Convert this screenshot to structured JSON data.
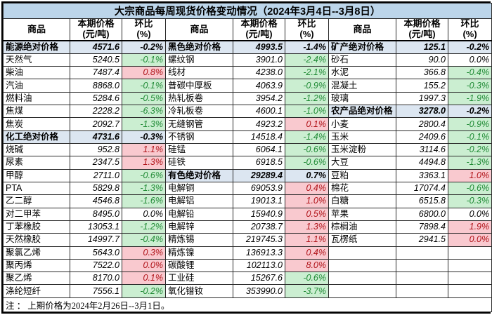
{
  "colors": {
    "title-bg": "#BCD5EA",
    "header-bg": "#FFFFFF",
    "section-bg": "#DCE6F1",
    "positive-bg": "#F9C9CF",
    "positive-text": "#B01218",
    "negative-bg": "#CBEED1",
    "negative-text": "#1F8A34",
    "grid-line": "#2B2B2B",
    "outer-border": "#000000",
    "text": "#000000"
  },
  "chart_data": {
    "type": "table",
    "title": "大宗商品每周现货价格变动情况（2024年3月4日--3月8日）",
    "note": "注 ： 上期价格为2024年2月26日--3月1日。",
    "header": {
      "commodity": "商品",
      "price_line1": "本期价格",
      "price_line2": "(元/吨)",
      "pct_line1": "环比",
      "pct_line2": "(%)"
    },
    "row_count": 20,
    "groups": [
      {
        "rows": [
          {
            "name": "能源绝对价格",
            "price": "4571.6",
            "pct": "-0.2%",
            "state": "section"
          },
          {
            "name": "天然气",
            "price": "5240.5",
            "pct": "-0.1%",
            "state": "neg"
          },
          {
            "name": "柴油",
            "price": "7487.4",
            "pct": "0.8%",
            "state": "pos"
          },
          {
            "name": "汽油",
            "price": "8868.0",
            "pct": "-0.1%",
            "state": "neg"
          },
          {
            "name": "燃料油",
            "price": "5284.6",
            "pct": "-0.5%",
            "state": "neg"
          },
          {
            "name": "焦煤",
            "price": "2228.2",
            "pct": "-6.3%",
            "state": "neg"
          },
          {
            "name": "焦炭",
            "price": "2092.7",
            "pct": "-1.3%",
            "state": "neg"
          },
          {
            "name": "化工绝对价格",
            "price": "4731.6",
            "pct": "-0.3%",
            "state": "section"
          },
          {
            "name": "烧碱",
            "price": "952.8",
            "pct": "1.1%",
            "state": "pos"
          },
          {
            "name": "尿素",
            "price": "2347.5",
            "pct": "1.3%",
            "state": "pos"
          },
          {
            "name": "甲醇",
            "price": "2711.0",
            "pct": "-0.6%",
            "state": "neg"
          },
          {
            "name": "PTA",
            "price": "5829.8",
            "pct": "-1.3%",
            "state": "neg"
          },
          {
            "name": "乙二醇",
            "price": "4546.8",
            "pct": "-1.6%",
            "state": "neg"
          },
          {
            "name": "对二甲苯",
            "price": "8495.0",
            "pct": "0.0%",
            "state": "zero"
          },
          {
            "name": "丁苯橡胶",
            "price": "13053.1",
            "pct": "-1.2%",
            "state": "neg"
          },
          {
            "name": "天然橡胶",
            "price": "14997.7",
            "pct": "-0.4%",
            "state": "neg"
          },
          {
            "name": "聚氯乙烯",
            "price": "5643.0",
            "pct": "0.3%",
            "state": "pos"
          },
          {
            "name": "聚丙烯",
            "price": "7522.0",
            "pct": "0.0%",
            "state": "pos"
          },
          {
            "name": "聚乙烯",
            "price": "8170.0",
            "pct": "0.1%",
            "state": "pos"
          },
          {
            "name": "涤纶短纤",
            "price": "7556.1",
            "pct": "-0.2%",
            "state": "neg"
          }
        ]
      },
      {
        "rows": [
          {
            "name": "黑色绝对价格",
            "price": "4993.5",
            "pct": "-1.4%",
            "state": "section"
          },
          {
            "name": "螺纹钢",
            "price": "3901.0",
            "pct": "-2.4%",
            "state": "neg"
          },
          {
            "name": "线材",
            "price": "4238.0",
            "pct": "-2.1%",
            "state": "neg"
          },
          {
            "name": "普碳中厚板",
            "price": "4063.9",
            "pct": "-0.9%",
            "state": "neg"
          },
          {
            "name": "热轧板卷",
            "price": "3954.2",
            "pct": "-1.2%",
            "state": "neg"
          },
          {
            "name": "冷轧板卷",
            "price": "4600.1",
            "pct": "-1.0%",
            "state": "neg"
          },
          {
            "name": "无缝钢管",
            "price": "4923.2",
            "pct": "0.1%",
            "state": "pos"
          },
          {
            "name": "不锈钢",
            "price": "14518.4",
            "pct": "-1.4%",
            "state": "neg"
          },
          {
            "name": "硅锰",
            "price": "6064.1",
            "pct": "-0.6%",
            "state": "neg"
          },
          {
            "name": "硅铁",
            "price": "6918.5",
            "pct": "-0.6%",
            "state": "neg"
          },
          {
            "name": "有色绝对价格",
            "price": "29289.4",
            "pct": "0.7%",
            "state": "section"
          },
          {
            "name": "电解铜",
            "price": "69053.9",
            "pct": "0.4%",
            "state": "pos"
          },
          {
            "name": "电解铝",
            "price": "19013.1",
            "pct": "1.0%",
            "state": "pos"
          },
          {
            "name": "电解铅",
            "price": "15940.9",
            "pct": "0.5%",
            "state": "pos"
          },
          {
            "name": "电解锌",
            "price": "20738.7",
            "pct": "1.3%",
            "state": "pos"
          },
          {
            "name": "精炼锡",
            "price": "219745.3",
            "pct": "1.1%",
            "state": "pos"
          },
          {
            "name": "精炼镍",
            "price": "136913.3",
            "pct": "0.4%",
            "state": "pos"
          },
          {
            "name": "碳酸锂",
            "price": "102113.0",
            "pct": "8.0%",
            "state": "pos"
          },
          {
            "name": "工业硅",
            "price": "15267.6",
            "pct": "-0.6%",
            "state": "neg"
          },
          {
            "name": "氧化镨钕",
            "price": "353990.0",
            "pct": "-3.7%",
            "state": "neg"
          }
        ]
      },
      {
        "rows": [
          {
            "name": "矿产绝对价格",
            "price": "125.1",
            "pct": "-0.2%",
            "state": "section"
          },
          {
            "name": "砂石",
            "price": "90.0",
            "pct": "0.0%",
            "state": "zero"
          },
          {
            "name": "水泥",
            "price": "366.8",
            "pct": "-0.4%",
            "state": "neg"
          },
          {
            "name": "混凝土",
            "price": "155.2",
            "pct": "-0.3%",
            "state": "neg"
          },
          {
            "name": "玻璃",
            "price": "1997.3",
            "pct": "-1.9%",
            "state": "neg"
          },
          {
            "name": "农产品绝对价格",
            "price": "3278.0",
            "pct": "-0.2%",
            "state": "section"
          },
          {
            "name": "小麦",
            "price": "2800.4",
            "pct": "-0.9%",
            "state": "neg"
          },
          {
            "name": "玉米",
            "price": "2409.6",
            "pct": "-0.1%",
            "state": "neg"
          },
          {
            "name": "玉米淀粉",
            "price": "3114.6",
            "pct": "-0.2%",
            "state": "neg"
          },
          {
            "name": "大豆",
            "price": "4494.8",
            "pct": "-1.3%",
            "state": "neg"
          },
          {
            "name": "豆粕",
            "price": "3363.1",
            "pct": "1.0%",
            "state": "pos"
          },
          {
            "name": "棉花",
            "price": "17074.4",
            "pct": "-0.6%",
            "state": "neg"
          },
          {
            "name": "白糖",
            "price": "6515.8",
            "pct": "-0.3%",
            "state": "neg"
          },
          {
            "name": "苹果",
            "price": "6800.0",
            "pct": "0.0%",
            "state": "zero"
          },
          {
            "name": "棕榈油",
            "price": "7898.4",
            "pct": "1.9%",
            "state": "pos"
          },
          {
            "name": "瓦楞纸",
            "price": "2941.5",
            "pct": "0.0%",
            "state": "pos"
          },
          {
            "name": "",
            "price": "",
            "pct": "",
            "state": "empty"
          },
          {
            "name": "",
            "price": "",
            "pct": "",
            "state": "empty"
          },
          {
            "name": "",
            "price": "",
            "pct": "",
            "state": "empty"
          },
          {
            "name": "",
            "price": "",
            "pct": "",
            "state": "empty"
          }
        ]
      }
    ]
  }
}
